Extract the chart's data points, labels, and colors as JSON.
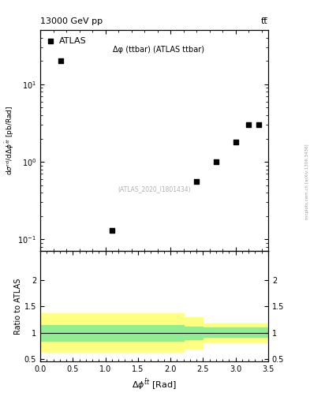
{
  "title_left": "13000 GeV pp",
  "title_right": "tt̅",
  "annotation": "Δφ (ttbar) (ATLAS ttbar)",
  "watermark": "(ATLAS_2020_I1801434)",
  "side_text": "mcplots.cern.ch [arXiv:1306.3436]",
  "legend_label": "ATLAS",
  "data_x": [
    0.32,
    1.1,
    2.4,
    2.7,
    3.0,
    3.2,
    3.35
  ],
  "data_y": [
    20.0,
    0.13,
    0.55,
    1.0,
    1.8,
    3.0,
    3.0
  ],
  "xlim": [
    0,
    3.5
  ],
  "ylim_main": [
    0.07,
    50
  ],
  "ylim_ratio": [
    0.45,
    2.55
  ],
  "ratio_yticks": [
    0.5,
    1.0,
    1.5,
    2.0
  ],
  "color_yellow": "#ffff80",
  "color_green": "#90ee90",
  "color_data": "#000000",
  "color_line": "#000000"
}
